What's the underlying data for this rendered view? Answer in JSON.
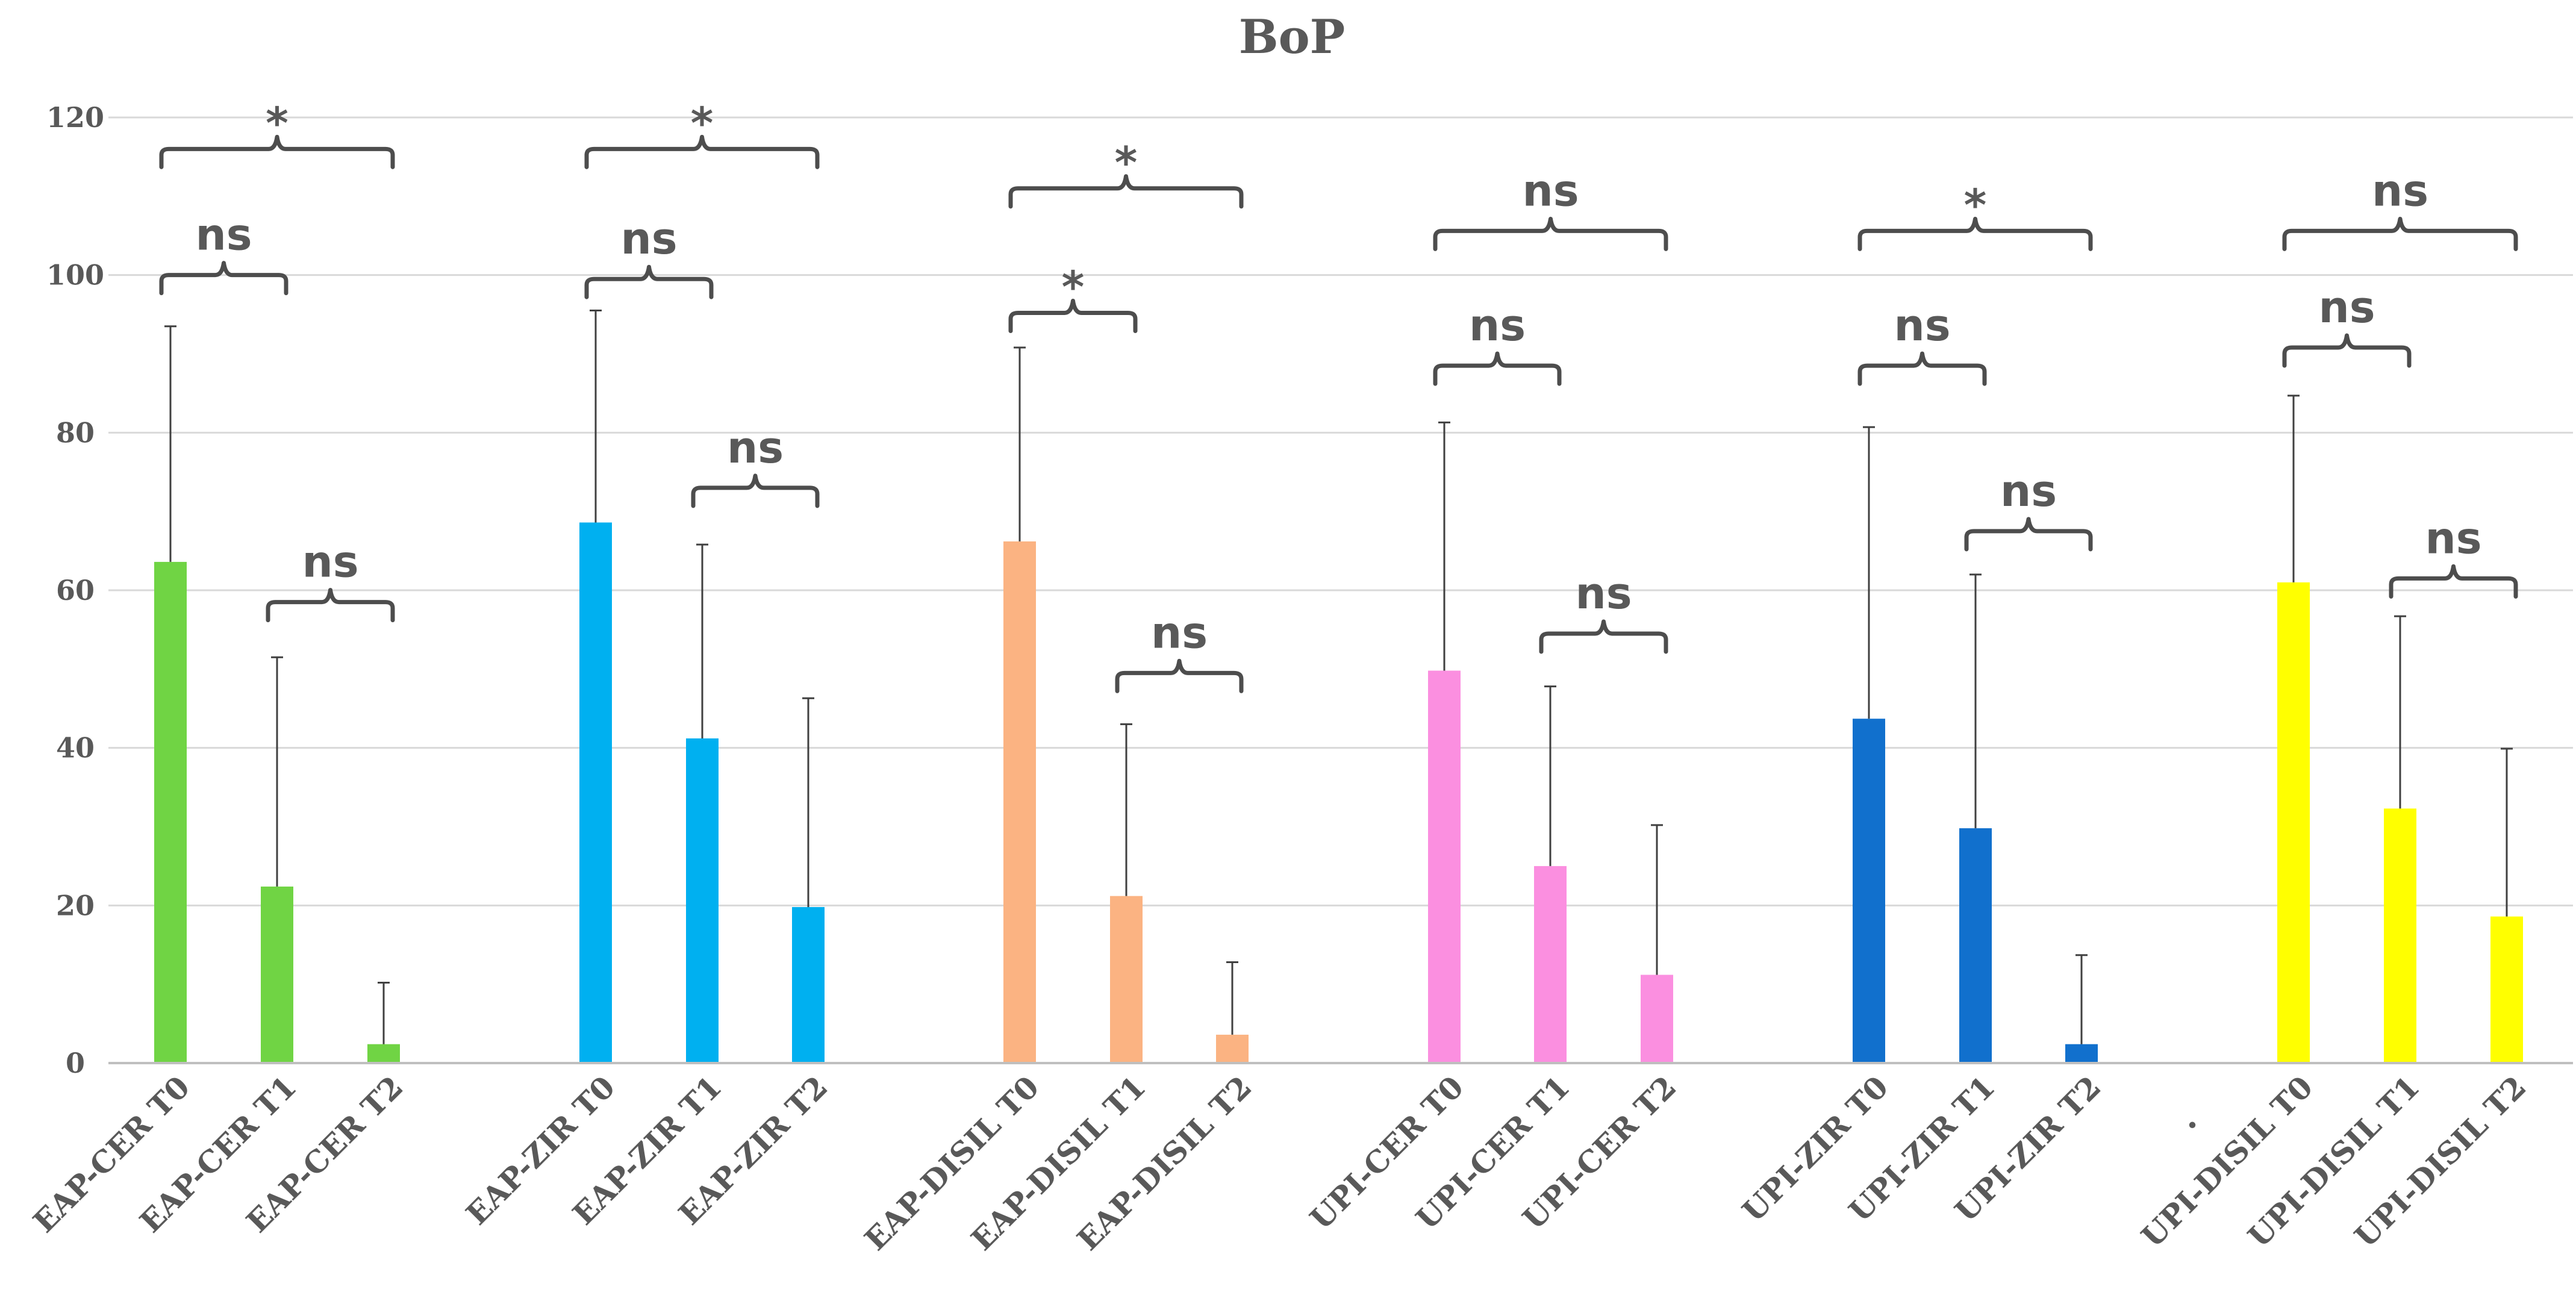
{
  "chart_data": {
    "type": "bar",
    "title": "BoP",
    "xlabel": "",
    "ylabel": "",
    "ylim": [
      0,
      120
    ],
    "yticks": [
      0,
      20,
      40,
      60,
      80,
      100,
      120
    ],
    "grid": true,
    "legend": "none",
    "categories": [
      "EAP-CER T0",
      "EAP-CER T1",
      "EAP-CER T2",
      "EAP-ZIR T0",
      "EAP-ZIR T1",
      "EAP-ZIR T2",
      "EAP-DISIL T0",
      "EAP-DISIL T1",
      "EAP-DISIL  T2",
      "UPI-CER T0",
      "UPI-CER T1",
      "UPI-CER T2",
      "UPI-ZIR T0",
      "UPI-ZIR T1",
      "UPI-ZIR T2",
      "UPI-DISIL T0",
      "UPI-DISIL T1",
      "UPI-DISIL T2"
    ],
    "values": [
      63.6,
      22.4,
      2.4,
      68.6,
      41.2,
      19.8,
      66.2,
      21.2,
      3.6,
      49.8,
      25.0,
      11.2,
      43.7,
      29.8,
      2.4,
      61.0,
      32.3,
      18.6
    ],
    "error_upper": [
      93.5,
      51.5,
      10.2,
      95.5,
      65.8,
      46.3,
      90.8,
      43.0,
      12.8,
      81.3,
      47.8,
      30.2,
      80.7,
      62.0,
      13.7,
      84.7,
      56.7,
      39.9
    ],
    "bar_colors": [
      "#70d444",
      "#70d444",
      "#70d444",
      "#00b0f0",
      "#00b0f0",
      "#00b0f0",
      "#fbb382",
      "#fbb382",
      "#fbb382",
      "#fb8fe0",
      "#fb8fe0",
      "#fb8fe0",
      "#1170cd",
      "#1170cd",
      "#1170cd",
      "#ffff00",
      "#ffff00",
      "#ffff00"
    ],
    "group_separator_label": ".",
    "comparisons": [
      {
        "from": 0,
        "to": 2,
        "label": "*",
        "level": 116
      },
      {
        "from": 0,
        "to": 1,
        "label": "ns",
        "level": 100
      },
      {
        "from": 1,
        "to": 2,
        "label": "ns",
        "level": 58.5
      },
      {
        "from": 3,
        "to": 5,
        "label": "*",
        "level": 116
      },
      {
        "from": 3,
        "to": 4,
        "label": "ns",
        "level": 99.5
      },
      {
        "from": 4,
        "to": 5,
        "label": "ns",
        "level": 73
      },
      {
        "from": 6,
        "to": 8,
        "label": "*",
        "level": 111
      },
      {
        "from": 6,
        "to": 7,
        "label": "*",
        "level": 95.2
      },
      {
        "from": 7,
        "to": 8,
        "label": "ns",
        "level": 49.5
      },
      {
        "from": 9,
        "to": 11,
        "label": "ns",
        "level": 105.6
      },
      {
        "from": 9,
        "to": 10,
        "label": "ns",
        "level": 88.5
      },
      {
        "from": 10,
        "to": 11,
        "label": "ns",
        "level": 54.5
      },
      {
        "from": 12,
        "to": 14,
        "label": "*",
        "level": 105.6
      },
      {
        "from": 12,
        "to": 13,
        "label": "ns",
        "level": 88.5
      },
      {
        "from": 13,
        "to": 14,
        "label": "ns",
        "level": 67.5
      },
      {
        "from": 15,
        "to": 17,
        "label": "ns",
        "level": 105.6
      },
      {
        "from": 15,
        "to": 16,
        "label": "ns",
        "level": 90.8
      },
      {
        "from": 16,
        "to": 17,
        "label": "ns",
        "level": 61.5
      }
    ]
  }
}
